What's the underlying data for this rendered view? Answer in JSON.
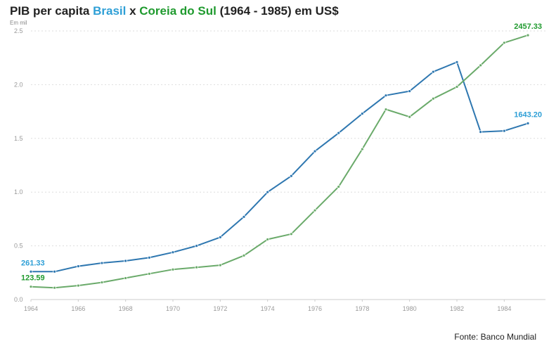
{
  "title": {
    "prefix": "PIB per capita ",
    "brasil": "Brasil",
    "mid": " x ",
    "coreia": "Coreia do Sul",
    "suffix": " (1964 - 1985) em US$"
  },
  "source": "Fonte: Banco Mundial",
  "chart_data": {
    "type": "line",
    "title": "PIB per capita Brasil x Coreia do Sul (1964 - 1985) em US$",
    "ylabel": "Em mil",
    "xlabel": "",
    "xlim": [
      1964,
      1985
    ],
    "ylim": [
      0,
      2.5
    ],
    "grid": true,
    "legend": "none",
    "x_ticks": [
      "1964",
      "1966",
      "1968",
      "1970",
      "1972",
      "1974",
      "1976",
      "1978",
      "1980",
      "1982",
      "1984"
    ],
    "y_ticks": [
      "0.0",
      "0.5",
      "1.0",
      "1.5",
      "2.0",
      "2.5"
    ],
    "x": [
      1964,
      1965,
      1966,
      1967,
      1968,
      1969,
      1970,
      1971,
      1972,
      1973,
      1974,
      1975,
      1976,
      1977,
      1978,
      1979,
      1980,
      1981,
      1982,
      1983,
      1984,
      1985
    ],
    "series": [
      {
        "name": "Brasil",
        "color": "#2e77b0",
        "label_color": "#2e9fd6",
        "values": [
          0.26,
          0.26,
          0.31,
          0.34,
          0.36,
          0.39,
          0.44,
          0.5,
          0.58,
          0.77,
          1.0,
          1.15,
          1.38,
          1.55,
          1.73,
          1.9,
          1.94,
          2.12,
          2.21,
          1.56,
          1.57,
          1.64
        ],
        "start_label": "261.33",
        "end_label": "1643.20"
      },
      {
        "name": "Coreia do Sul",
        "color": "#6aaa6a",
        "label_color": "#1f9a2e",
        "values": [
          0.12,
          0.11,
          0.13,
          0.16,
          0.2,
          0.24,
          0.28,
          0.3,
          0.32,
          0.41,
          0.56,
          0.61,
          0.83,
          1.05,
          1.4,
          1.77,
          1.7,
          1.87,
          1.98,
          2.18,
          2.39,
          2.46
        ],
        "start_label": "123.59",
        "end_label": "2457.33"
      }
    ]
  }
}
